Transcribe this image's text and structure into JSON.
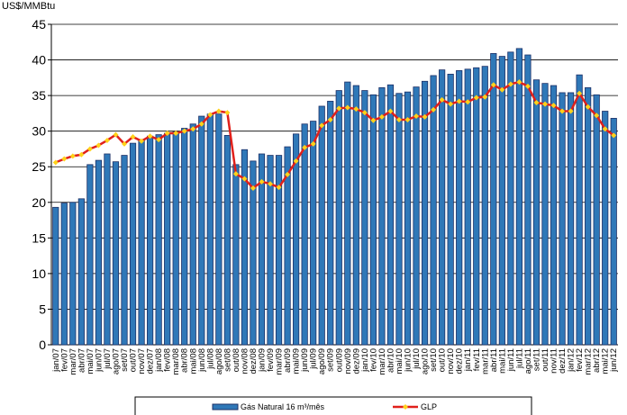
{
  "chart_data": {
    "type": "bar_line",
    "y_label": "US$/MMBtu",
    "categories": [
      "jan/07",
      "fev/07",
      "mar/07",
      "abr/07",
      "mai/07",
      "jun/07",
      "jul/07",
      "ago/07",
      "set/07",
      "out/07",
      "nov/07",
      "dez/07",
      "jan/08",
      "fev/08",
      "mar/08",
      "abr/08",
      "mai/08",
      "jun/08",
      "jul/08",
      "ago/08",
      "set/08",
      "out/08",
      "nov/08",
      "dez/08",
      "jan/09",
      "fev/09",
      "mar/09",
      "abr/09",
      "mai/09",
      "jun/09",
      "jul/09",
      "ago/09",
      "set/09",
      "out/09",
      "nov/09",
      "dez/09",
      "jan/10",
      "fev/10",
      "mar/10",
      "abr/10",
      "mai/10",
      "jun/10",
      "jul/10",
      "ago/10",
      "set/10",
      "out/10",
      "nov/10",
      "dez/10",
      "jan/11",
      "fev/11",
      "mar/11",
      "abr/11",
      "mai/11",
      "jun/11",
      "jul/11",
      "ago/11",
      "set/11",
      "out/11",
      "nov/11",
      "dez/11",
      "jan/12",
      "fev/12",
      "mar/12",
      "abr/12",
      "mai/12",
      "jun/12"
    ],
    "series": [
      {
        "name": "Gás Natural 16 m³/mês",
        "kind": "bar",
        "color": "#2f78b8",
        "values": [
          19.3,
          19.9,
          20.0,
          20.5,
          25.3,
          25.9,
          26.8,
          25.7,
          26.6,
          28.3,
          28.8,
          29.3,
          29.5,
          29.7,
          29.9,
          30.4,
          31.0,
          32.1,
          32.4,
          32.4,
          29.4,
          25.3,
          27.4,
          25.8,
          26.8,
          26.6,
          26.6,
          27.8,
          29.6,
          31.0,
          31.4,
          33.5,
          34.2,
          35.7,
          36.9,
          36.4,
          35.7,
          35.1,
          36.1,
          36.5,
          35.3,
          35.5,
          36.2,
          37.0,
          37.8,
          38.6,
          38.0,
          38.5,
          38.7,
          38.9,
          39.1,
          40.9,
          40.5,
          41.1,
          41.6,
          40.7,
          37.2,
          36.7,
          36.4,
          35.4,
          35.4,
          37.9,
          36.1,
          35.1,
          32.8,
          31.8
        ]
      },
      {
        "name": "GLP",
        "kind": "line",
        "color": "#e0201b",
        "marker_color": "#ffd21a",
        "values": [
          25.6,
          26.1,
          26.5,
          26.7,
          27.5,
          28.0,
          28.7,
          29.5,
          28.2,
          29.2,
          28.6,
          29.3,
          28.8,
          29.7,
          29.7,
          30.0,
          30.3,
          31.0,
          32.3,
          32.8,
          32.6,
          24.0,
          23.3,
          22.0,
          22.9,
          22.6,
          22.1,
          23.9,
          25.8,
          27.7,
          28.2,
          30.8,
          31.6,
          33.2,
          33.3,
          33.1,
          32.6,
          31.5,
          32.0,
          32.8,
          31.6,
          31.6,
          32.1,
          32.0,
          33.0,
          34.4,
          33.8,
          34.2,
          34.1,
          34.7,
          34.8,
          36.5,
          35.8,
          36.6,
          36.9,
          36.3,
          34.0,
          33.8,
          33.6,
          32.8,
          32.8,
          35.3,
          33.4,
          32.2,
          30.3,
          29.4
        ]
      }
    ],
    "ylim": [
      0,
      45
    ],
    "yticks": [
      0,
      5,
      10,
      15,
      20,
      25,
      30,
      35,
      40,
      45
    ],
    "grid": true
  }
}
